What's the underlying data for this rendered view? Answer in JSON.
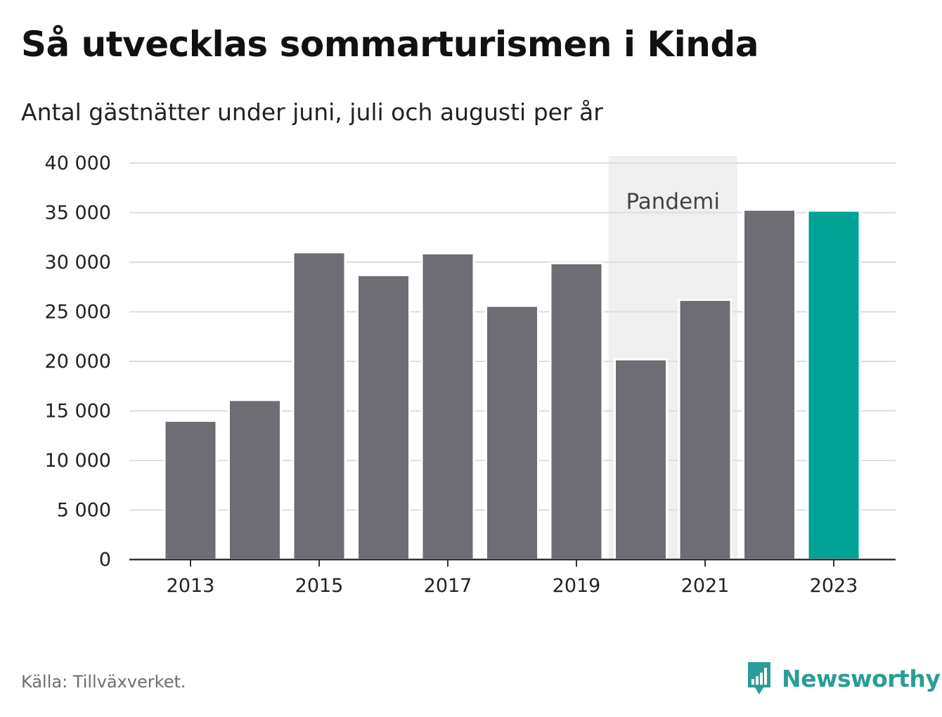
{
  "title": "Så utvecklas sommarturismen i Kinda",
  "subtitle": "Antal gästnätter under juni, juli och augusti per år",
  "source": "Källa: Tillväxverket.",
  "brand": {
    "name": "Newsworthy",
    "icon": "newsworthy-chart-bubble-icon",
    "color": "#2a9d96"
  },
  "colors": {
    "bar": "#6e6d74",
    "highlight": "#00a497",
    "pandemic_band": "#efefef",
    "grid": "#dddddd",
    "axis": "#333333"
  },
  "chart_data": {
    "type": "bar",
    "title": "Så utvecklas sommarturismen i Kinda",
    "subtitle": "Antal gästnätter under juni, juli och augusti per år",
    "xlabel": "",
    "ylabel": "",
    "categories": [
      "2013",
      "2014",
      "2015",
      "2016",
      "2017",
      "2018",
      "2019",
      "2020",
      "2021",
      "2022",
      "2023"
    ],
    "values": [
      14000,
      16100,
      31000,
      28700,
      30900,
      25600,
      29900,
      20200,
      26200,
      35300,
      35200
    ],
    "highlight_category": "2023",
    "ylim": [
      0,
      40000
    ],
    "yticks": [
      0,
      5000,
      10000,
      15000,
      20000,
      25000,
      30000,
      35000,
      40000
    ],
    "ytick_labels": [
      "0",
      "5 000",
      "10 000",
      "15 000",
      "20 000",
      "25 000",
      "30 000",
      "35 000",
      "40 000"
    ],
    "xtick_labels": [
      "2013",
      "2015",
      "2017",
      "2019",
      "2021",
      "2023"
    ],
    "grid": true,
    "annotation": {
      "label": "Pandemi",
      "from": "2020",
      "to": "2021"
    }
  }
}
